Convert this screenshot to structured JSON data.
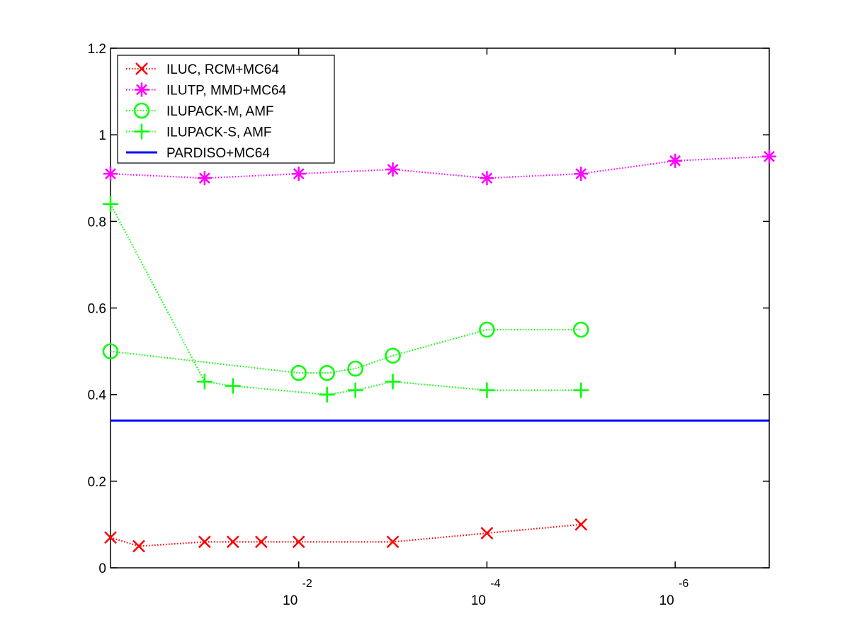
{
  "chart_data": {
    "type": "line",
    "x_scale": "log",
    "x_reversed": true,
    "xlim": [
      1,
      1e-07
    ],
    "ylim": [
      0,
      1.2
    ],
    "grid": false,
    "legend_position": "top-left",
    "x_ticks": [
      {
        "value": 0.01,
        "base": "10",
        "exponent": "-2"
      },
      {
        "value": 0.0001,
        "base": "10",
        "exponent": "-4"
      },
      {
        "value": 1e-06,
        "base": "10",
        "exponent": "-6"
      }
    ],
    "y_ticks": [
      {
        "value": 0,
        "label": "0"
      },
      {
        "value": 0.2,
        "label": "0.2"
      },
      {
        "value": 0.4,
        "label": "0.4"
      },
      {
        "value": 0.6,
        "label": "0.6"
      },
      {
        "value": 0.8,
        "label": "0.8"
      },
      {
        "value": 1.0,
        "label": "1"
      },
      {
        "value": 1.2,
        "label": "1.2"
      }
    ],
    "series": [
      {
        "name": "ILUC, RCM+MC64",
        "color": "#ff0000",
        "marker": "x",
        "line": "dotted",
        "points": [
          [
            1,
            0.07
          ],
          [
            0.5,
            0.05
          ],
          [
            0.1,
            0.06
          ],
          [
            0.05,
            0.06
          ],
          [
            0.025,
            0.06
          ],
          [
            0.01,
            0.06
          ],
          [
            0.001,
            0.06
          ],
          [
            0.0001,
            0.08
          ],
          [
            1e-05,
            0.1
          ]
        ]
      },
      {
        "name": "ILUTP, MMD+MC64",
        "color": "#ff00ff",
        "marker": "asterisk",
        "line": "dotted",
        "points": [
          [
            1,
            0.91
          ],
          [
            0.1,
            0.9
          ],
          [
            0.01,
            0.91
          ],
          [
            0.001,
            0.92
          ],
          [
            0.0001,
            0.9
          ],
          [
            1e-05,
            0.91
          ],
          [
            1e-06,
            0.94
          ],
          [
            1e-07,
            0.95
          ]
        ]
      },
      {
        "name": "ILUPACK-M, AMF",
        "color": "#00ff00",
        "marker": "circle",
        "line": "dotted",
        "points": [
          [
            1,
            0.5
          ],
          [
            0.01,
            0.45
          ],
          [
            0.005,
            0.45
          ],
          [
            0.0025,
            0.46
          ],
          [
            0.001,
            0.49
          ],
          [
            0.0001,
            0.55
          ],
          [
            1e-05,
            0.55
          ]
        ]
      },
      {
        "name": "ILUPACK-S, AMF",
        "color": "#00ff00",
        "marker": "plus",
        "line": "dotted",
        "points": [
          [
            1,
            0.84
          ],
          [
            0.1,
            0.43
          ],
          [
            0.05,
            0.42
          ],
          [
            0.005,
            0.4
          ],
          [
            0.0025,
            0.41
          ],
          [
            0.001,
            0.43
          ],
          [
            0.0001,
            0.41
          ],
          [
            1e-05,
            0.41
          ]
        ]
      },
      {
        "name": "PARDISO+MC64",
        "color": "#0000ff",
        "marker": "none",
        "line": "solid",
        "points": [
          [
            1,
            0.34
          ],
          [
            1e-07,
            0.34
          ]
        ]
      }
    ]
  }
}
